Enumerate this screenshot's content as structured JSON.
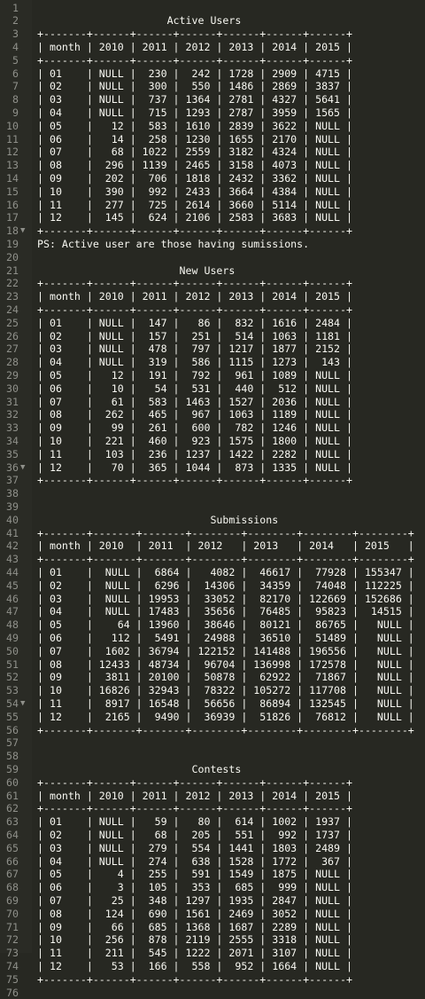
{
  "editor": {
    "background": "#272822",
    "text_color": "#f8f8f2",
    "gutter_color": "#8f908a",
    "lines": [
      "",
      "                     Active Users",
      "+-------+------+------+------+------+------+------+",
      "| month | 2010 | 2011 | 2012 | 2013 | 2014 | 2015 |",
      "+-------+------+------+------+------+------+------+",
      "| 01    | NULL |  230 |  242 | 1728 | 2909 | 4715 |",
      "| 02    | NULL |  300 |  550 | 1486 | 2869 | 3837 |",
      "| 03    | NULL |  737 | 1364 | 2781 | 4327 | 5641 |",
      "| 04    | NULL |  715 | 1293 | 2787 | 3959 | 1565 |",
      "| 05    |   12 |  583 | 1610 | 2839 | 3622 | NULL |",
      "| 06    |   14 |  258 | 1230 | 1655 | 2170 | NULL |",
      "| 07    |   68 | 1022 | 2559 | 3182 | 4324 | NULL |",
      "| 08    |  296 | 1139 | 2465 | 3158 | 4073 | NULL |",
      "| 09    |  202 |  706 | 1818 | 2432 | 3362 | NULL |",
      "| 10    |  390 |  992 | 2433 | 3664 | 4384 | NULL |",
      "| 11    |  277 |  725 | 2614 | 3660 | 5114 | NULL |",
      "| 12    |  145 |  624 | 2106 | 2583 | 3683 | NULL |",
      "+-------+------+------+------+------+------+------+",
      "PS: Active user are those having sumissions.",
      "",
      "                       New Users",
      "+-------+------+------+------+------+------+------+",
      "| month | 2010 | 2011 | 2012 | 2013 | 2014 | 2015 |",
      "+-------+------+------+------+------+------+------+",
      "| 01    | NULL |  147 |   86 |  832 | 1616 | 2484 |",
      "| 02    | NULL |  157 |  251 |  514 | 1063 | 1181 |",
      "| 03    | NULL |  478 |  797 | 1217 | 1877 | 2152 |",
      "| 04    | NULL |  319 |  586 | 1115 | 1273 |  143 |",
      "| 05    |   12 |  191 |  792 |  961 | 1089 | NULL |",
      "| 06    |   10 |   54 |  531 |  440 |  512 | NULL |",
      "| 07    |   61 |  583 | 1463 | 1527 | 2036 | NULL |",
      "| 08    |  262 |  465 |  967 | 1063 | 1189 | NULL |",
      "| 09    |   99 |  261 |  600 |  782 | 1246 | NULL |",
      "| 10    |  221 |  460 |  923 | 1575 | 1800 | NULL |",
      "| 11    |  103 |  236 | 1237 | 1422 | 2282 | NULL |",
      "| 12    |   70 |  365 | 1044 |  873 | 1335 | NULL |",
      "+-------+------+------+------+------+------+------+",
      "",
      "",
      "                            Submissions",
      "+-------+-------+-------+--------+--------+--------+--------+",
      "| month | 2010  | 2011  | 2012   | 2013   | 2014   | 2015   |",
      "+-------+-------+-------+--------+--------+--------+--------+",
      "| 01    |  NULL |  6864 |   4082 |  46617 |  77928 | 155347 |",
      "| 02    |  NULL |  6296 |  14306 |  34359 |  74048 | 112225 |",
      "| 03    |  NULL | 19953 |  33052 |  82170 | 122669 | 152686 |",
      "| 04    |  NULL | 17483 |  35656 |  76485 |  95823 |  14515 |",
      "| 05    |    64 | 13960 |  38646 |  80121 |  86765 |   NULL |",
      "| 06    |   112 |  5491 |  24988 |  36510 |  51489 |   NULL |",
      "| 07    |  1602 | 36794 | 122152 | 141488 | 196556 |   NULL |",
      "| 08    | 12433 | 48734 |  96704 | 136998 | 172578 |   NULL |",
      "| 09    |  3811 | 20100 |  50878 |  62922 |  71867 |   NULL |",
      "| 10    | 16826 | 32943 |  78322 | 105272 | 117708 |   NULL |",
      "| 11    |  8917 | 16548 |  56656 |  86894 | 132545 |   NULL |",
      "| 12    |  2165 |  9490 |  36939 |  51826 |  76812 |   NULL |",
      "+-------+-------+-------+--------+--------+--------+--------+",
      "",
      "",
      "                         Contests",
      "+-------+------+------+------+------+------+------+",
      "| month | 2010 | 2011 | 2012 | 2013 | 2014 | 2015 |",
      "+-------+------+------+------+------+------+------+",
      "| 01    | NULL |   59 |   80 |  614 | 1002 | 1937 |",
      "| 02    | NULL |   68 |  205 |  551 |  992 | 1737 |",
      "| 03    | NULL |  279 |  554 | 1441 | 1803 | 2489 |",
      "| 04    | NULL |  274 |  638 | 1528 | 1772 |  367 |",
      "| 05    |    4 |  255 |  591 | 1549 | 1875 | NULL |",
      "| 06    |    3 |  105 |  353 |  685 |  999 | NULL |",
      "| 07    |   25 |  348 | 1297 | 1935 | 2847 | NULL |",
      "| 08    |  124 |  690 | 1561 | 2469 | 3052 | NULL |",
      "| 09    |   66 |  685 | 1368 | 1687 | 2289 | NULL |",
      "| 10    |  256 |  878 | 2119 | 2555 | 3318 | NULL |",
      "| 11    |  211 |  545 | 1222 | 2071 | 3107 | NULL |",
      "| 12    |   53 |  166 |  558 |  952 | 1664 | NULL |",
      "+-------+------+------+------+------+------+------+",
      ""
    ],
    "fold_markers": [
      18,
      36,
      54
    ],
    "fold_icon": "fold-arrow-icon"
  }
}
